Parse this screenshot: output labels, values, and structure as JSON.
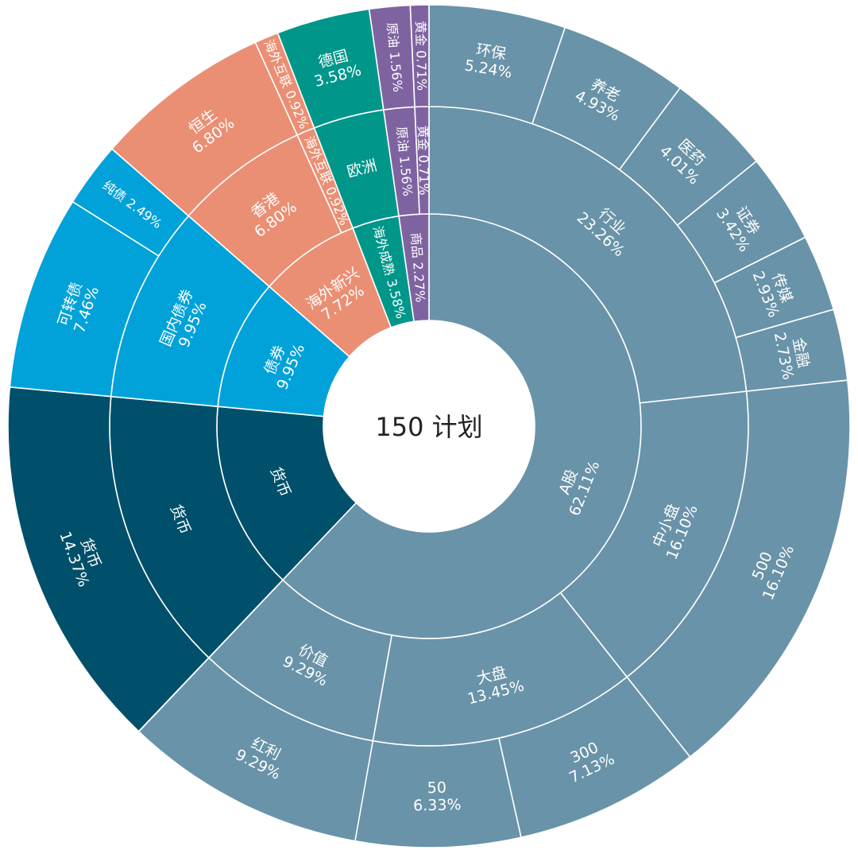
{
  "chart_data": {
    "type": "sunburst",
    "title": "150 计划",
    "colors": {
      "a_share": "#6993a8",
      "money": "#00506b",
      "bond": "#00a2d9",
      "overseas_emerging": "#ea8f74",
      "overseas_mature": "#00968a",
      "commodity": "#7f63a1"
    },
    "nodes": [
      {
        "name": "A股",
        "value": 62.11,
        "label": "62.11%",
        "group": "a_share",
        "children": [
          {
            "name": "行业",
            "value": 23.26,
            "label": "23.26%",
            "children": [
              {
                "name": "环保",
                "value": 5.24,
                "label": "5.24%"
              },
              {
                "name": "养老",
                "value": 4.93,
                "label": "4.93%"
              },
              {
                "name": "医药",
                "value": 4.01,
                "label": "4.01%"
              },
              {
                "name": "证券",
                "value": 3.42,
                "label": "3.42%"
              },
              {
                "name": "传媒",
                "value": 2.93,
                "label": "2.93%"
              },
              {
                "name": "金融",
                "value": 2.73,
                "label": "2.73%"
              }
            ]
          },
          {
            "name": "中小盘",
            "value": 16.1,
            "label": "16.10%",
            "children": [
              {
                "name": "500",
                "value": 16.1,
                "label": "16.10%"
              }
            ]
          },
          {
            "name": "大盘",
            "value": 13.45,
            "label": "13.45%",
            "children": [
              {
                "name": "300",
                "value": 7.13,
                "label": "7.13%"
              },
              {
                "name": "50",
                "value": 6.33,
                "label": "6.33%"
              }
            ]
          },
          {
            "name": "价值",
            "value": 9.29,
            "label": "9.29%",
            "children": [
              {
                "name": "红利",
                "value": 9.29,
                "label": "9.29%"
              }
            ]
          }
        ]
      },
      {
        "name": "货币",
        "value": 14.37,
        "label": "",
        "group": "money",
        "children": [
          {
            "name": "货币",
            "value": 14.37,
            "label": "",
            "children": [
              {
                "name": "货币",
                "value": 14.37,
                "label": "14.37%"
              }
            ]
          }
        ]
      },
      {
        "name": "债券",
        "value": 9.95,
        "label": "9.95%",
        "group": "bond",
        "children": [
          {
            "name": "国内债券",
            "value": 9.95,
            "label": "9.95%",
            "children": [
              {
                "name": "可转债",
                "value": 7.46,
                "label": "7.46%"
              },
              {
                "name": "纯债",
                "value": 2.49,
                "label": "2.49%",
                "inline": true
              }
            ]
          }
        ]
      },
      {
        "name": "海外新兴",
        "value": 7.72,
        "label": "7.72%",
        "group": "overseas_emerging",
        "children": [
          {
            "name": "香港",
            "value": 6.8,
            "label": "6.80%",
            "children": [
              {
                "name": "恒生",
                "value": 6.8,
                "label": "6.80%"
              }
            ]
          },
          {
            "name": "海外互联",
            "value": 0.92,
            "label": "0.92%",
            "inline": true,
            "children": [
              {
                "name": "海外互联",
                "value": 0.92,
                "label": "0.92%",
                "inline": true
              }
            ]
          }
        ]
      },
      {
        "name": "海外成熟",
        "value": 3.58,
        "label": "3.58%",
        "inline": true,
        "group": "overseas_mature",
        "children": [
          {
            "name": "欧洲",
            "value": 3.58,
            "label": "",
            "children": [
              {
                "name": "德国",
                "value": 3.58,
                "label": "3.58%"
              }
            ]
          }
        ]
      },
      {
        "name": "商品",
        "value": 2.27,
        "label": "2.27%",
        "inline": true,
        "group": "commodity",
        "children": [
          {
            "name": "原油",
            "value": 1.56,
            "label": "1.56%",
            "inline": true,
            "children": [
              {
                "name": "原油",
                "value": 1.56,
                "label": "1.56%",
                "inline": true
              }
            ]
          },
          {
            "name": "黄金",
            "value": 0.71,
            "label": "0.71%",
            "inline": true,
            "children": [
              {
                "name": "黄金",
                "value": 0.71,
                "label": "0.71%",
                "inline": true
              }
            ]
          }
        ]
      }
    ]
  }
}
